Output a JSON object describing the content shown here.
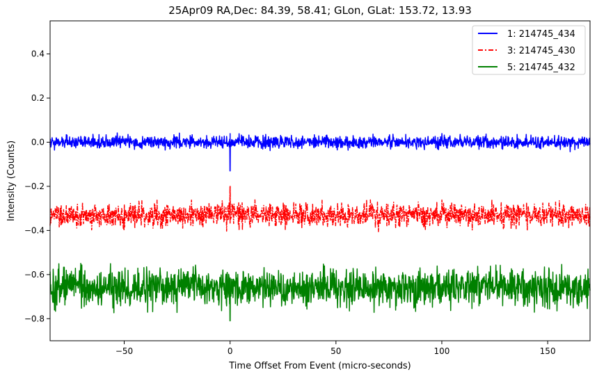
{
  "chart_data": {
    "type": "line",
    "title": "25Apr09 RA,Dec:   84.39,  58.41; GLon, GLat:  153.72,  13.93",
    "xlabel": "Time Offset From Event (micro-seconds)",
    "ylabel": "Intensity (Counts)",
    "xlim": [
      -85,
      170
    ],
    "ylim": [
      -0.9,
      0.55
    ],
    "xticks": [
      -50,
      0,
      50,
      100,
      150
    ],
    "xtick_labels": [
      "−50",
      "0",
      "50",
      "100",
      "150"
    ],
    "yticks": [
      -0.8,
      -0.6,
      -0.4,
      -0.2,
      0.0,
      0.2,
      0.4
    ],
    "ytick_labels": [
      "−0.8",
      "−0.6",
      "−0.4",
      "−0.2",
      "0.0",
      "0.2",
      "0.4"
    ],
    "event_time": 0,
    "legend_position": "top-right",
    "series": [
      {
        "name": "1: 214745_434",
        "color": "#0000ff",
        "style": "solid",
        "baseline": 0.0,
        "noise_range": [
          -0.05,
          0.05
        ],
        "event_min": -0.13
      },
      {
        "name": "3: 214745_430",
        "color": "#ff0000",
        "style": "dashdot",
        "baseline": -0.33,
        "noise_range": [
          -0.44,
          -0.26
        ],
        "event_min": -0.2
      },
      {
        "name": "5: 214745_432",
        "color": "#008000",
        "style": "solid",
        "baseline": -0.66,
        "noise_range": [
          -0.81,
          -0.51
        ],
        "event_min": -0.81
      }
    ]
  }
}
